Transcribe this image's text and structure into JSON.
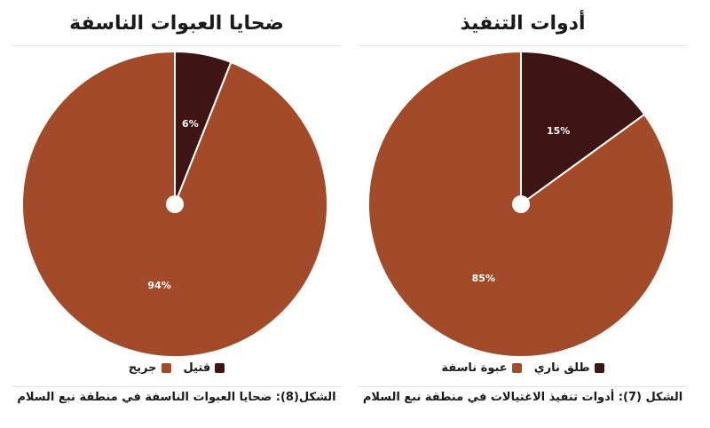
{
  "colors": {
    "dark": "#3f1414",
    "main": "#a34a28"
  },
  "chart_data": [
    {
      "type": "pie",
      "title": "ضحايا العبوات الناسفة",
      "caption": "الشكل(8): ضحايا العبوات الناسفة في منطقة نبع السلام",
      "slices": [
        {
          "label": "قتيل",
          "value": 6,
          "display": "6%",
          "color": "#3f1414"
        },
        {
          "label": "جريح",
          "value": 94,
          "display": "94%",
          "color": "#a34a28"
        }
      ],
      "legend_position": "bottom"
    },
    {
      "type": "pie",
      "title": "أدوات التنفيذ",
      "caption": "الشكل (7): أدوات تنفيذ الاغتيالات في منطقة نبع السلام",
      "slices": [
        {
          "label": "طلق ناري",
          "value": 15,
          "display": "15%",
          "color": "#3f1414"
        },
        {
          "label": "عبوة ناسفة",
          "value": 85,
          "display": "85%",
          "color": "#a34a28"
        }
      ],
      "legend_position": "bottom"
    }
  ]
}
